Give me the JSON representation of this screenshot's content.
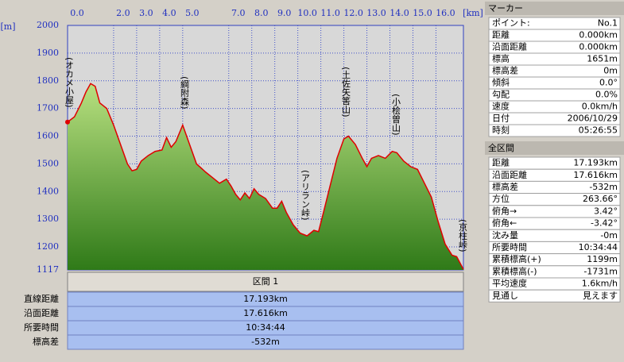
{
  "chart_data": {
    "type": "area",
    "x_label": "[km]",
    "y_label": "[m]",
    "x": [
      0,
      0.3,
      0.6,
      0.8,
      1.0,
      1.2,
      1.4,
      1.7,
      2.0,
      2.3,
      2.6,
      2.8,
      3.0,
      3.2,
      3.5,
      3.8,
      4.1,
      4.3,
      4.5,
      4.7,
      5.0,
      5.3,
      5.6,
      6.0,
      6.3,
      6.6,
      6.9,
      7.1,
      7.3,
      7.5,
      7.7,
      7.9,
      8.1,
      8.3,
      8.6,
      8.9,
      9.1,
      9.3,
      9.5,
      9.8,
      10.1,
      10.4,
      10.7,
      10.9,
      11.1,
      11.4,
      11.7,
      12.0,
      12.2,
      12.5,
      12.8,
      13.0,
      13.2,
      13.5,
      13.8,
      14.1,
      14.3,
      14.6,
      14.9,
      15.2,
      15.5,
      15.8,
      16.1,
      16.4,
      16.7,
      16.9,
      17.193
    ],
    "values": [
      1651,
      1670,
      1720,
      1760,
      1790,
      1780,
      1720,
      1700,
      1640,
      1570,
      1500,
      1475,
      1480,
      1510,
      1530,
      1545,
      1550,
      1595,
      1560,
      1580,
      1640,
      1570,
      1500,
      1470,
      1450,
      1430,
      1445,
      1420,
      1390,
      1370,
      1395,
      1375,
      1410,
      1390,
      1375,
      1340,
      1340,
      1365,
      1325,
      1280,
      1250,
      1240,
      1260,
      1255,
      1320,
      1420,
      1520,
      1590,
      1600,
      1570,
      1520,
      1490,
      1520,
      1530,
      1520,
      1545,
      1540,
      1510,
      1490,
      1480,
      1430,
      1380,
      1290,
      1210,
      1170,
      1165,
      1119
    ],
    "color": "#e00000",
    "fill": "#5fa030",
    "xlim": [
      0,
      17.193
    ],
    "ylim": [
      1117,
      2000
    ],
    "xticks": [
      {
        "value": 0,
        "label": "0.0"
      },
      {
        "value": 2,
        "label": "2.0"
      },
      {
        "value": 3,
        "label": "3.0"
      },
      {
        "value": 4,
        "label": "4.0"
      },
      {
        "value": 5,
        "label": "5.0"
      },
      {
        "value": 7,
        "label": "7.0"
      },
      {
        "value": 8,
        "label": "8.0"
      },
      {
        "value": 9,
        "label": "9.0"
      },
      {
        "value": 10,
        "label": "10.0"
      },
      {
        "value": 11,
        "label": "11.0"
      },
      {
        "value": 12,
        "label": "12.0"
      },
      {
        "value": 13,
        "label": "13.0"
      },
      {
        "value": 14,
        "label": "14.0"
      },
      {
        "value": 15,
        "label": "15.0"
      },
      {
        "value": 16,
        "label": "16.0"
      }
    ],
    "yticks": [
      2000,
      1900,
      1800,
      1700,
      1600,
      1500,
      1400,
      1300,
      1200,
      1117
    ],
    "grid": true,
    "annotations": [
      "(オカメ小屋)",
      "(綱附森)",
      "(アリラン峠)",
      "(土佐矢筈山)",
      "(小桧曽山)",
      "(京柱峠)"
    ]
  },
  "section": {
    "header": "区間 1",
    "rows": [
      [
        "直線距離",
        "17.193km"
      ],
      [
        "沿面距離",
        "17.616km"
      ],
      [
        "所要時間",
        "10:34:44"
      ],
      [
        "標高差",
        "-532m"
      ]
    ]
  },
  "marker_panel": {
    "title": "マーカー",
    "rows": [
      [
        "ポイント:",
        "No.1"
      ],
      [
        "距離",
        "0.000km"
      ],
      [
        "沿面距離",
        "0.000km"
      ],
      [
        "標高",
        "1651m"
      ],
      [
        "標高差",
        "0m"
      ],
      [
        "傾斜",
        "0.0°"
      ],
      [
        "勾配",
        "0.0%"
      ],
      [
        "速度",
        "0.0km/h"
      ],
      [
        "日付",
        "2006/10/29"
      ],
      [
        "時刻",
        "05:26:55"
      ]
    ]
  },
  "total_panel": {
    "title": "全区間",
    "rows": [
      [
        "距離",
        "17.193km"
      ],
      [
        "沿面距離",
        "17.616km"
      ],
      [
        "標高差",
        "-532m"
      ],
      [
        "方位",
        "263.66°"
      ],
      [
        "俯角→",
        "3.42°"
      ],
      [
        "俯角←",
        "-3.42°"
      ],
      [
        "沈み量",
        "-0m"
      ],
      [
        "所要時間",
        "10:34:44"
      ],
      [
        "累積標高(+)",
        "1199m"
      ],
      [
        "累積標高(-)",
        "-1731m"
      ],
      [
        "平均速度",
        "1.6km/h"
      ],
      [
        "見通し",
        "見えます"
      ]
    ]
  }
}
